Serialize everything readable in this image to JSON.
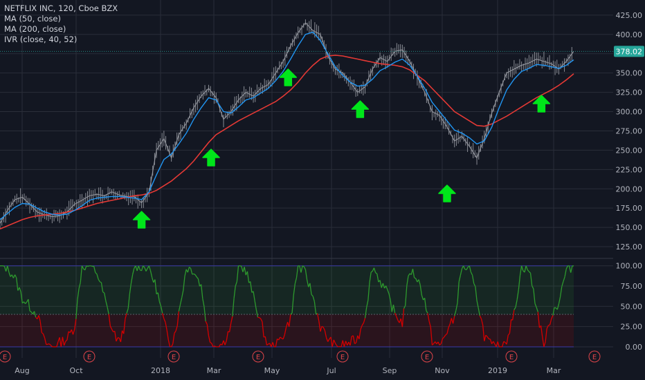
{
  "legend": {
    "symbol": "NETFLIX INC, 120, Cboe BZX",
    "ma50": "MA (50, close)",
    "ma200": "MA (200, close)",
    "ivr": "IVR (close, 40, 52)"
  },
  "colors": {
    "background": "#131722",
    "grid": "#2a2e39",
    "price_wick": "#8a8d95",
    "ma50": "#2196f3",
    "ma200": "#e53935",
    "last_price": "#26a69a",
    "ivr_high": "#2e9a2e",
    "ivr_low": "#d50000",
    "ivr_band": "#3a3aa8",
    "arrow": "#00e61a",
    "earnings": "#e0454a"
  },
  "chart_data": [
    {
      "type": "line",
      "name": "price",
      "x_ticks": [
        "Aug",
        "Oct",
        "2018",
        "Mar",
        "May",
        "Jul",
        "Sep",
        "Nov",
        "2019",
        "Mar"
      ],
      "y_ticks": [
        "425.00",
        "400.00",
        "375.00",
        "350.00",
        "325.00",
        "300.00",
        "275.00",
        "250.00",
        "225.00",
        "200.00",
        "175.00",
        "150.00",
        "125.00"
      ],
      "ylim": [
        117,
        432
      ],
      "last_price": "378.02",
      "x": [
        0,
        3,
        6,
        9,
        12,
        15,
        18,
        21,
        24,
        27,
        30,
        33,
        36,
        39,
        42,
        45,
        48,
        51,
        54,
        57,
        60,
        63,
        66,
        69,
        72,
        75,
        78,
        81,
        84,
        87,
        90,
        93,
        96,
        99,
        102,
        105,
        108,
        111,
        114,
        117,
        120,
        123,
        126,
        129,
        132,
        135,
        138,
        141,
        144,
        147,
        150,
        153,
        156,
        159,
        162,
        165,
        168,
        171,
        174,
        177,
        180,
        183,
        186,
        189,
        192,
        195,
        198,
        201,
        204,
        207,
        210,
        213,
        216,
        219,
        222,
        225,
        228,
        231
      ],
      "close": [
        155,
        172,
        186,
        189,
        180,
        170,
        166,
        164,
        165,
        170,
        180,
        185,
        191,
        193,
        191,
        196,
        192,
        190,
        190,
        182,
        195,
        250,
        265,
        240,
        270,
        285,
        305,
        320,
        330,
        318,
        290,
        300,
        315,
        325,
        320,
        330,
        335,
        350,
        365,
        385,
        402,
        415,
        405,
        400,
        372,
        355,
        350,
        338,
        325,
        332,
        355,
        370,
        365,
        378,
        380,
        365,
        345,
        325,
        300,
        295,
        280,
        262,
        268,
        255,
        240,
        265,
        298,
        325,
        350,
        355,
        360,
        363,
        368,
        365,
        362,
        355,
        365,
        378
      ],
      "ma50": [
        160,
        168,
        176,
        181,
        180,
        175,
        170,
        167,
        166,
        167,
        172,
        178,
        185,
        188,
        189,
        190,
        190,
        189,
        188,
        186,
        196,
        218,
        238,
        245,
        258,
        272,
        290,
        305,
        318,
        315,
        300,
        298,
        306,
        315,
        318,
        324,
        330,
        340,
        352,
        368,
        385,
        400,
        403,
        392,
        375,
        358,
        347,
        338,
        333,
        334,
        342,
        353,
        358,
        364,
        368,
        360,
        346,
        330,
        312,
        300,
        288,
        276,
        272,
        266,
        258,
        262,
        280,
        305,
        328,
        342,
        352,
        356,
        361,
        360,
        358,
        356,
        360,
        367
      ],
      "ma200": [
        148,
        152,
        156,
        160,
        163,
        165,
        166,
        167,
        168,
        170,
        172,
        175,
        178,
        181,
        183,
        185,
        187,
        189,
        191,
        192,
        194,
        198,
        204,
        210,
        218,
        226,
        236,
        248,
        260,
        270,
        276,
        282,
        288,
        293,
        298,
        303,
        308,
        313,
        320,
        328,
        338,
        350,
        360,
        368,
        372,
        373,
        372,
        370,
        368,
        366,
        364,
        362,
        361,
        360,
        358,
        354,
        347,
        340,
        330,
        320,
        310,
        300,
        294,
        288,
        282,
        281,
        284,
        289,
        294,
        300,
        306,
        312,
        318,
        323,
        328,
        334,
        341,
        349
      ]
    },
    {
      "type": "area",
      "name": "IVR",
      "y_ticks": [
        "100.00",
        "75.00",
        "50.00",
        "25.00",
        "0.00"
      ],
      "ylim": [
        -6,
        104
      ],
      "bands": [
        0,
        40,
        100
      ],
      "x": [
        0,
        3,
        6,
        9,
        12,
        15,
        18,
        21,
        24,
        27,
        30,
        33,
        36,
        39,
        42,
        45,
        48,
        51,
        54,
        57,
        60,
        63,
        66,
        69,
        72,
        75,
        78,
        81,
        84,
        87,
        90,
        93,
        96,
        99,
        102,
        105,
        108,
        111,
        114,
        117,
        120,
        123,
        126,
        129,
        132,
        135,
        138,
        141,
        144,
        147,
        150,
        153,
        156,
        159,
        162,
        165,
        168,
        171,
        174,
        177,
        180,
        183,
        186,
        189,
        192,
        195,
        198,
        201,
        204,
        207,
        210,
        213,
        216,
        219,
        222,
        225,
        228,
        231
      ],
      "values": [
        100,
        98,
        85,
        60,
        50,
        40,
        5,
        0,
        5,
        10,
        25,
        100,
        100,
        92,
        62,
        22,
        5,
        35,
        100,
        100,
        98,
        72,
        30,
        0,
        40,
        98,
        95,
        75,
        12,
        0,
        5,
        25,
        100,
        95,
        62,
        30,
        0,
        0,
        15,
        35,
        100,
        90,
        62,
        25,
        10,
        0,
        2,
        5,
        10,
        40,
        100,
        82,
        65,
        40,
        30,
        95,
        85,
        58,
        8,
        0,
        20,
        35,
        100,
        95,
        62,
        14,
        0,
        0,
        10,
        40,
        100,
        95,
        50,
        0,
        40,
        55,
        95,
        100
      ]
    }
  ],
  "annotations": {
    "arrows_x": [
      57,
      85,
      116,
      145,
      180,
      218
    ],
    "earnings_label": "E",
    "earnings_x": [
      1,
      33,
      65,
      95,
      126,
      157,
      188,
      219,
      250
    ]
  }
}
